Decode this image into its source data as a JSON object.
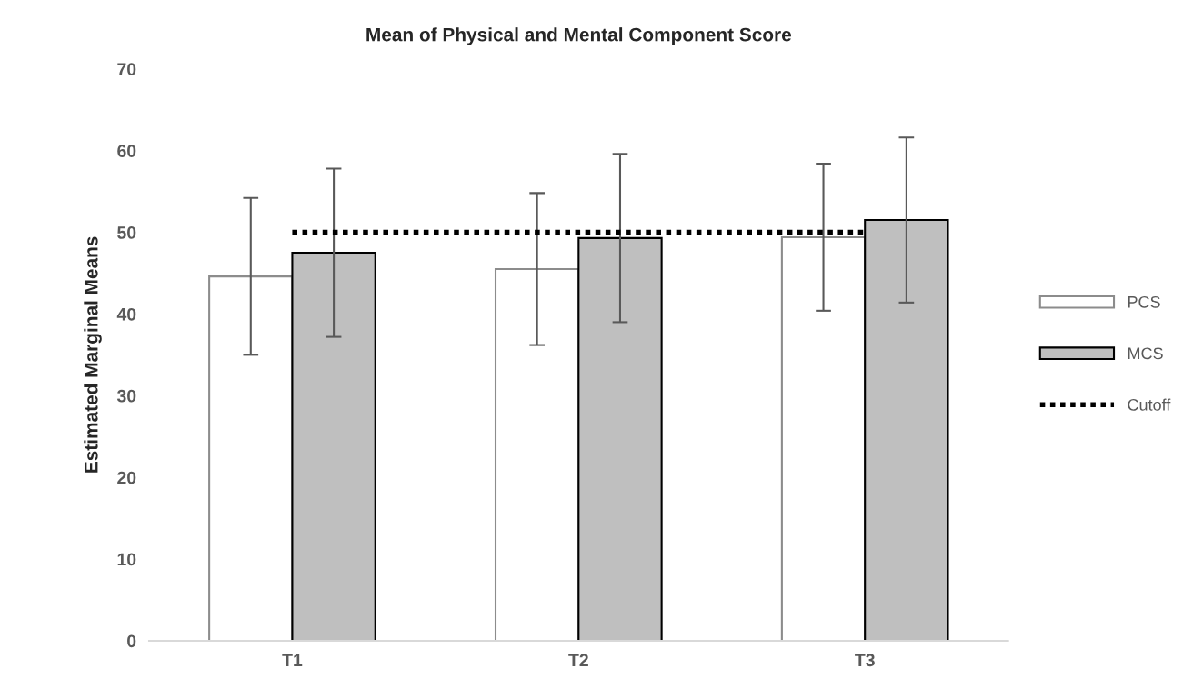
{
  "chart_data": {
    "type": "bar",
    "title": "Mean of Physical and Mental Component Score",
    "ylabel": "Estimated Marginal Means",
    "categories": [
      "T1",
      "T2",
      "T3"
    ],
    "series": [
      {
        "name": "PCS",
        "color": "#ffffff",
        "values": [
          44.6,
          45.5,
          49.4
        ],
        "errors": [
          9.6,
          9.3,
          9.0
        ]
      },
      {
        "name": "MCS",
        "color": "#bfbfbf",
        "values": [
          47.5,
          49.3,
          51.5
        ],
        "errors": [
          10.3,
          10.3,
          10.1
        ]
      },
      {
        "name": "Cutoff",
        "type": "line",
        "color": "#000000",
        "line_style": "dotted",
        "values": [
          50,
          50,
          50
        ]
      }
    ],
    "ylim": [
      0,
      70
    ],
    "yticks": [
      0,
      10,
      20,
      30,
      40,
      50,
      60,
      70
    ],
    "grid": false,
    "legend": "right"
  }
}
